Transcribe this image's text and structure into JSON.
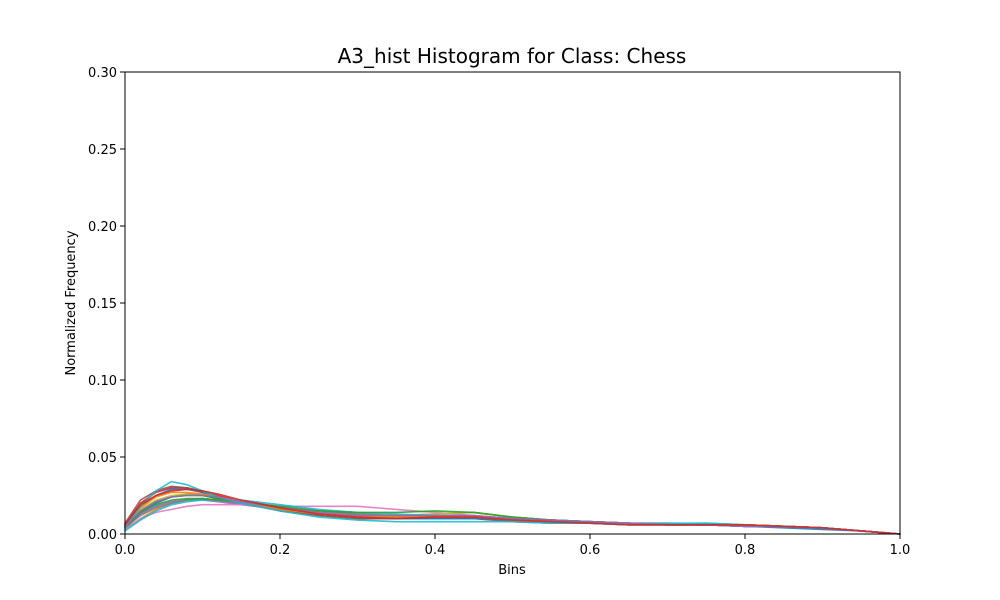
{
  "chart_data": {
    "type": "line",
    "title": "A3_hist Histogram for Class: Chess",
    "xlabel": "Bins",
    "ylabel": "Normalized Frequency",
    "xlim": [
      0.0,
      1.0
    ],
    "ylim": [
      0.0,
      0.3
    ],
    "grid": false,
    "x_ticks": [
      "0.0",
      "0.2",
      "0.4",
      "0.6",
      "0.8",
      "1.0"
    ],
    "y_ticks": [
      "0.00",
      "0.05",
      "0.10",
      "0.15",
      "0.20",
      "0.25",
      "0.30"
    ],
    "x": [
      0.0,
      0.02,
      0.04,
      0.06,
      0.08,
      0.1,
      0.12,
      0.15,
      0.2,
      0.25,
      0.3,
      0.35,
      0.4,
      0.45,
      0.5,
      0.55,
      0.6,
      0.65,
      0.7,
      0.75,
      0.8,
      0.85,
      0.9,
      0.95,
      1.0
    ],
    "series": [
      {
        "color": "#1f77b4",
        "values": [
          0.004,
          0.014,
          0.02,
          0.024,
          0.026,
          0.025,
          0.023,
          0.02,
          0.017,
          0.014,
          0.012,
          0.011,
          0.011,
          0.011,
          0.01,
          0.009,
          0.008,
          0.007,
          0.006,
          0.006,
          0.005,
          0.004,
          0.003,
          0.002,
          0.0
        ]
      },
      {
        "color": "#ff7f0e",
        "values": [
          0.003,
          0.01,
          0.016,
          0.02,
          0.022,
          0.023,
          0.022,
          0.02,
          0.016,
          0.013,
          0.012,
          0.011,
          0.012,
          0.012,
          0.01,
          0.009,
          0.008,
          0.007,
          0.006,
          0.006,
          0.006,
          0.005,
          0.004,
          0.002,
          0.0
        ]
      },
      {
        "color": "#2ca02c",
        "values": [
          0.005,
          0.015,
          0.021,
          0.024,
          0.025,
          0.025,
          0.023,
          0.021,
          0.017,
          0.014,
          0.012,
          0.012,
          0.013,
          0.014,
          0.011,
          0.009,
          0.008,
          0.007,
          0.006,
          0.007,
          0.006,
          0.005,
          0.004,
          0.002,
          0.0
        ]
      },
      {
        "color": "#d62728",
        "values": [
          0.006,
          0.02,
          0.027,
          0.03,
          0.03,
          0.028,
          0.025,
          0.021,
          0.015,
          0.012,
          0.01,
          0.01,
          0.011,
          0.011,
          0.009,
          0.008,
          0.007,
          0.007,
          0.006,
          0.006,
          0.006,
          0.005,
          0.004,
          0.002,
          0.0
        ]
      },
      {
        "color": "#9467bd",
        "values": [
          0.004,
          0.013,
          0.018,
          0.021,
          0.022,
          0.022,
          0.021,
          0.019,
          0.016,
          0.014,
          0.013,
          0.012,
          0.012,
          0.011,
          0.01,
          0.009,
          0.008,
          0.007,
          0.007,
          0.006,
          0.005,
          0.005,
          0.004,
          0.002,
          0.0
        ]
      },
      {
        "color": "#8c564b",
        "values": [
          0.007,
          0.022,
          0.028,
          0.031,
          0.03,
          0.027,
          0.024,
          0.02,
          0.015,
          0.012,
          0.01,
          0.01,
          0.01,
          0.01,
          0.008,
          0.007,
          0.007,
          0.006,
          0.006,
          0.006,
          0.005,
          0.005,
          0.004,
          0.002,
          0.0
        ]
      },
      {
        "color": "#e377c2",
        "values": [
          0.003,
          0.01,
          0.014,
          0.016,
          0.018,
          0.019,
          0.019,
          0.019,
          0.018,
          0.018,
          0.018,
          0.016,
          0.014,
          0.012,
          0.01,
          0.009,
          0.008,
          0.007,
          0.006,
          0.006,
          0.005,
          0.005,
          0.004,
          0.002,
          0.0
        ]
      },
      {
        "color": "#7f7f7f",
        "values": [
          0.004,
          0.012,
          0.017,
          0.02,
          0.022,
          0.023,
          0.022,
          0.02,
          0.017,
          0.015,
          0.013,
          0.012,
          0.012,
          0.011,
          0.01,
          0.009,
          0.008,
          0.007,
          0.006,
          0.006,
          0.005,
          0.005,
          0.004,
          0.002,
          0.0
        ]
      },
      {
        "color": "#bcbd22",
        "values": [
          0.005,
          0.016,
          0.022,
          0.025,
          0.026,
          0.026,
          0.024,
          0.021,
          0.017,
          0.014,
          0.012,
          0.012,
          0.013,
          0.014,
          0.011,
          0.009,
          0.008,
          0.007,
          0.006,
          0.006,
          0.006,
          0.005,
          0.004,
          0.002,
          0.0
        ]
      },
      {
        "color": "#17becf",
        "values": [
          0.002,
          0.009,
          0.015,
          0.019,
          0.021,
          0.022,
          0.022,
          0.022,
          0.019,
          0.016,
          0.014,
          0.013,
          0.012,
          0.011,
          0.01,
          0.009,
          0.008,
          0.007,
          0.007,
          0.007,
          0.006,
          0.005,
          0.004,
          0.002,
          0.0
        ]
      },
      {
        "color": "#1f77b4",
        "values": [
          0.005,
          0.018,
          0.025,
          0.029,
          0.029,
          0.027,
          0.024,
          0.02,
          0.016,
          0.013,
          0.011,
          0.01,
          0.01,
          0.01,
          0.009,
          0.008,
          0.007,
          0.006,
          0.006,
          0.006,
          0.005,
          0.005,
          0.004,
          0.002,
          0.0
        ]
      },
      {
        "color": "#2ca02c",
        "values": [
          0.004,
          0.014,
          0.019,
          0.022,
          0.023,
          0.023,
          0.022,
          0.021,
          0.018,
          0.015,
          0.014,
          0.014,
          0.015,
          0.014,
          0.011,
          0.009,
          0.008,
          0.007,
          0.006,
          0.006,
          0.006,
          0.005,
          0.004,
          0.002,
          0.0
        ]
      },
      {
        "color": "#ff7f0e",
        "values": [
          0.005,
          0.017,
          0.024,
          0.027,
          0.027,
          0.026,
          0.024,
          0.021,
          0.016,
          0.013,
          0.011,
          0.011,
          0.011,
          0.011,
          0.009,
          0.008,
          0.007,
          0.007,
          0.006,
          0.006,
          0.006,
          0.005,
          0.004,
          0.002,
          0.0
        ]
      },
      {
        "color": "#17becf",
        "values": [
          0.004,
          0.018,
          0.028,
          0.034,
          0.032,
          0.028,
          0.024,
          0.02,
          0.015,
          0.011,
          0.009,
          0.008,
          0.008,
          0.008,
          0.008,
          0.007,
          0.007,
          0.006,
          0.006,
          0.006,
          0.005,
          0.005,
          0.004,
          0.002,
          0.0
        ]
      },
      {
        "color": "#9467bd",
        "values": [
          0.005,
          0.015,
          0.021,
          0.024,
          0.025,
          0.025,
          0.024,
          0.021,
          0.017,
          0.014,
          0.012,
          0.012,
          0.012,
          0.012,
          0.01,
          0.009,
          0.008,
          0.007,
          0.006,
          0.006,
          0.005,
          0.005,
          0.004,
          0.002,
          0.0
        ]
      },
      {
        "color": "#d62728",
        "values": [
          0.006,
          0.019,
          0.025,
          0.028,
          0.029,
          0.028,
          0.026,
          0.022,
          0.017,
          0.013,
          0.011,
          0.01,
          0.011,
          0.011,
          0.009,
          0.008,
          0.007,
          0.006,
          0.006,
          0.006,
          0.006,
          0.005,
          0.004,
          0.002,
          0.0
        ]
      }
    ]
  }
}
